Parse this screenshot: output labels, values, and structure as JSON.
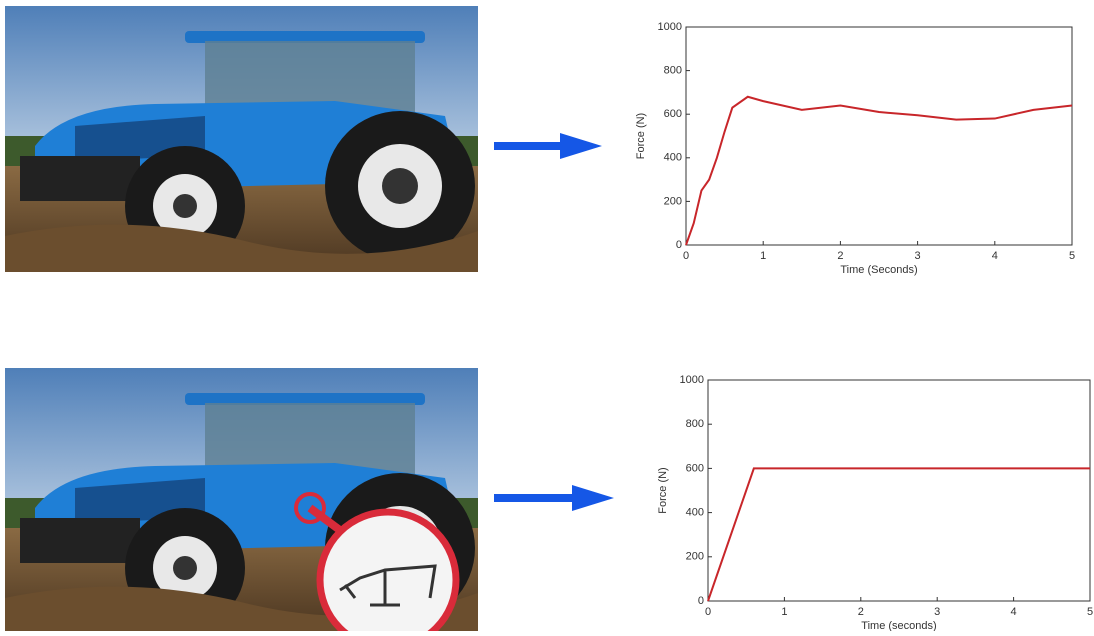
{
  "chart_data": [
    {
      "type": "line",
      "xlabel": "Time (Seconds)",
      "ylabel": "Force (N)",
      "x": [
        0,
        0.1,
        0.2,
        0.3,
        0.4,
        0.5,
        0.6,
        0.8,
        1,
        1.5,
        2,
        2.5,
        3,
        3.5,
        4,
        4.5,
        5
      ],
      "values": [
        0,
        100,
        250,
        300,
        400,
        520,
        630,
        680,
        660,
        620,
        640,
        610,
        595,
        575,
        580,
        620,
        640
      ],
      "color": "#c8262a",
      "xlim": [
        0,
        5
      ],
      "ylim": [
        0,
        1000
      ],
      "xticks": [
        0,
        1,
        2,
        3,
        4,
        5
      ],
      "yticks": [
        0,
        200,
        400,
        600,
        800,
        1000
      ]
    },
    {
      "type": "line",
      "xlabel": "Time (seconds)",
      "ylabel": "Force (N)",
      "x": [
        0,
        0.6,
        5
      ],
      "values": [
        0,
        600,
        600
      ],
      "color": "#c8262a",
      "xlim": [
        0,
        5
      ],
      "ylim": [
        0,
        1000
      ],
      "xticks": [
        0,
        1,
        2,
        3,
        4,
        5
      ],
      "yticks": [
        0,
        200,
        400,
        600,
        800,
        1000
      ]
    }
  ]
}
